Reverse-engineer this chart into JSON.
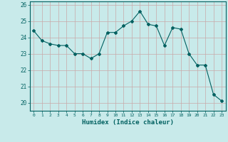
{
  "x": [
    0,
    1,
    2,
    3,
    4,
    5,
    6,
    7,
    8,
    9,
    10,
    11,
    12,
    13,
    14,
    15,
    16,
    17,
    18,
    19,
    20,
    21,
    22,
    23
  ],
  "y": [
    24.4,
    23.8,
    23.6,
    23.5,
    23.5,
    23.0,
    23.0,
    22.7,
    23.0,
    24.3,
    24.3,
    24.7,
    25.0,
    25.6,
    24.8,
    24.7,
    23.5,
    24.6,
    24.5,
    23.0,
    22.3,
    22.3,
    20.5,
    20.1
  ],
  "xlabel": "Humidex (Indice chaleur)",
  "xlim": [
    -0.5,
    23.5
  ],
  "ylim": [
    19.5,
    26.2
  ],
  "yticks": [
    20,
    21,
    22,
    23,
    24,
    25,
    26
  ],
  "xticks": [
    0,
    1,
    2,
    3,
    4,
    5,
    6,
    7,
    8,
    9,
    10,
    11,
    12,
    13,
    14,
    15,
    16,
    17,
    18,
    19,
    20,
    21,
    22,
    23
  ],
  "line_color": "#006060",
  "marker_color": "#006060",
  "bg_color": "#c8eaea",
  "grid_color": "#c8a8a8",
  "axis_color": "#006060",
  "label_color": "#006060"
}
